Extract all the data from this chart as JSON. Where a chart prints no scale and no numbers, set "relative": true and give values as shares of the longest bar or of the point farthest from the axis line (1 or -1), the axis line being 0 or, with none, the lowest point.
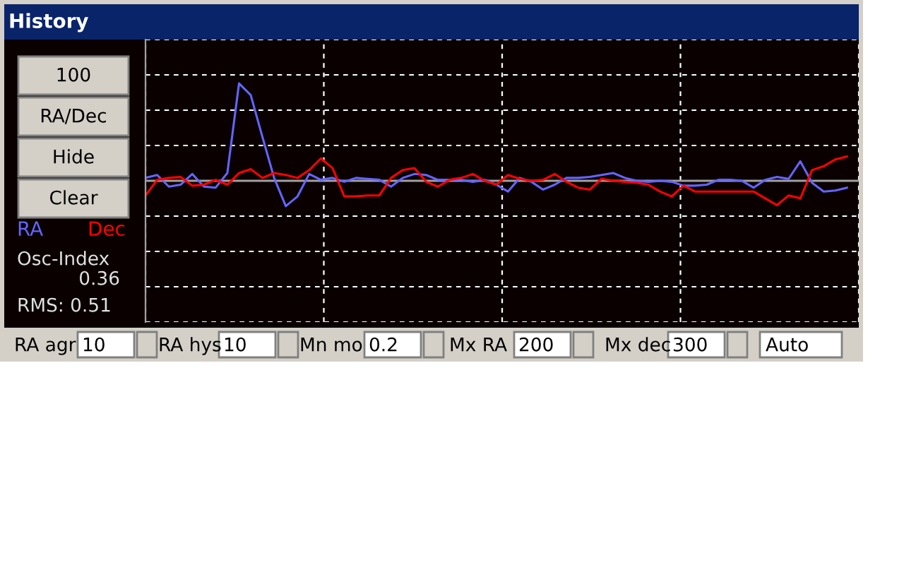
{
  "chart_data": {
    "type": "line",
    "title": "History",
    "relative": true,
    "grid": true,
    "tick_labels": false,
    "legend": "left",
    "marker": "none",
    "line_style": "solid",
    "categories": [
      null,
      null,
      null,
      null,
      null,
      null,
      null,
      null,
      null,
      null,
      null,
      null,
      null,
      null,
      null,
      null,
      null,
      null,
      null,
      null,
      null,
      null,
      null,
      null,
      null,
      null,
      null,
      null,
      null,
      null,
      null,
      null,
      null,
      null,
      null,
      null,
      null,
      null,
      null,
      null,
      null,
      null,
      null,
      null,
      null,
      null,
      null,
      null,
      null,
      null,
      null,
      null,
      null,
      null,
      null,
      null,
      null,
      null,
      null,
      null,
      null
    ],
    "series": [
      {
        "name": "RA",
        "color": "#6464ff",
        "values": [
          0.03,
          0.06,
          -0.06,
          -0.04,
          0.07,
          -0.06,
          -0.07,
          0.08,
          1.0,
          0.88,
          0.45,
          0.03,
          -0.26,
          -0.16,
          0.07,
          0.01,
          0.03,
          -0.01,
          0.03,
          0.02,
          0.01,
          -0.06,
          0.03,
          0.07,
          0.06,
          0.01,
          0.01,
          0.01,
          -0.01,
          0.01,
          -0.04,
          -0.11,
          0.03,
          -0.01,
          -0.09,
          -0.04,
          0.03,
          0.03,
          0.04,
          0.06,
          0.08,
          0.03,
          0.0,
          -0.01,
          0.0,
          -0.01,
          -0.05,
          -0.05,
          -0.04,
          0.01,
          0.01,
          0.0,
          -0.07,
          0.01,
          0.04,
          0.02,
          0.2,
          -0.02,
          -0.11,
          -0.1,
          -0.07
        ]
      },
      {
        "name": "Dec",
        "color": "#ff0000",
        "values": [
          -0.15,
          0.01,
          0.03,
          0.04,
          -0.05,
          -0.04,
          0.01,
          -0.04,
          0.08,
          0.12,
          0.03,
          0.08,
          0.06,
          0.03,
          0.11,
          0.23,
          0.13,
          -0.16,
          -0.16,
          -0.15,
          -0.15,
          0.03,
          0.11,
          0.13,
          -0.01,
          -0.06,
          0.01,
          0.03,
          0.07,
          0.0,
          -0.04,
          0.06,
          0.02,
          0.0,
          0.01,
          0.07,
          -0.01,
          -0.07,
          -0.09,
          0.02,
          0.0,
          -0.01,
          -0.02,
          -0.04,
          -0.11,
          -0.16,
          -0.05,
          -0.11,
          -0.11,
          -0.11,
          -0.11,
          -0.11,
          -0.11,
          -0.18,
          -0.25,
          -0.15,
          -0.18,
          0.11,
          0.15,
          0.22,
          0.25
        ]
      }
    ],
    "annotations": [
      "100",
      "RA/Dec",
      "Hide",
      "Clear",
      "Osc-Index",
      "0.36",
      "RMS: 0.51",
      "RA agr",
      "10",
      "RA hys",
      "10",
      "Mn mo",
      "0.2",
      "Mx RA",
      "200",
      "Mx dec",
      "300",
      "Auto"
    ]
  }
}
